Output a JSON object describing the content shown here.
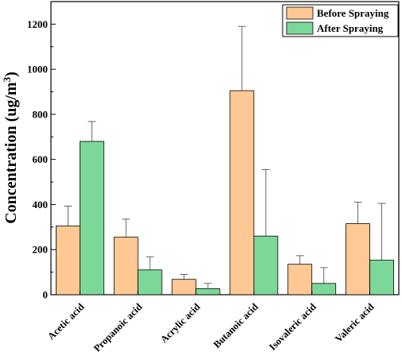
{
  "colors": {
    "before": "#FFC894",
    "after": "#7BD898",
    "axis": "#000000",
    "errorbar": "#555555"
  },
  "chart_data": {
    "type": "bar",
    "ylabel_main": "Concentration (ug/m",
    "ylabel_sup": "3",
    "ylabel_close": ")",
    "xlabel": "",
    "ylim": [
      0,
      1300
    ],
    "yticks": [
      0,
      200,
      400,
      600,
      800,
      1000,
      1200
    ],
    "legend_position": "top-right",
    "grid": false,
    "categories": [
      "Acetic acid",
      "Propanoic acid",
      "Acrylic acid",
      "Butanoic acid",
      "Isovaleric acid",
      "Valeric acid"
    ],
    "series": [
      {
        "name": "Before Spraying",
        "values": [
          305,
          255,
          68,
          905,
          135,
          315
        ],
        "errors": [
          88,
          80,
          22,
          285,
          38,
          95
        ]
      },
      {
        "name": "After Spraying",
        "values": [
          680,
          110,
          27,
          260,
          50,
          153
        ],
        "errors": [
          88,
          58,
          23,
          295,
          70,
          252
        ]
      }
    ]
  }
}
